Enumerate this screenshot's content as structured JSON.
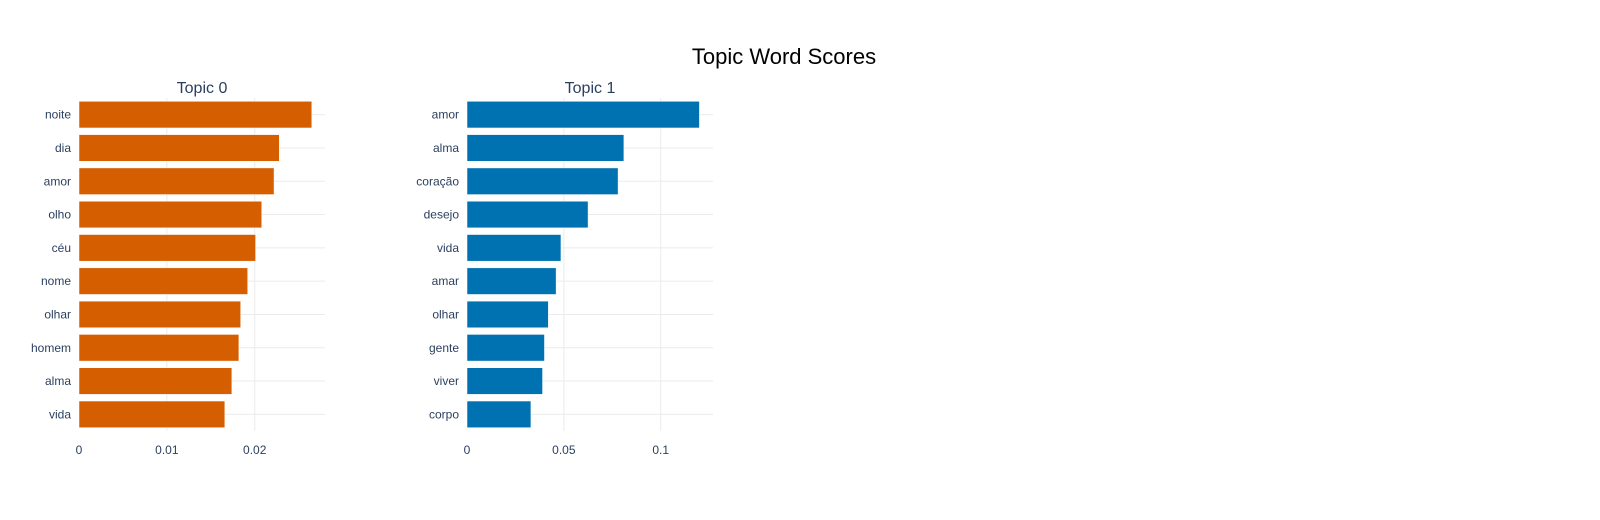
{
  "title": "Topic Word Scores",
  "chart_data": [
    {
      "type": "bar",
      "orientation": "horizontal",
      "title": "Topic 0",
      "color": "#D55E00",
      "categories": [
        "noite",
        "dia",
        "amor",
        "olho",
        "céu",
        "nome",
        "olhar",
        "homem",
        "alma",
        "vida"
      ],
      "values": [
        0.0265,
        0.0228,
        0.0222,
        0.0208,
        0.0201,
        0.0192,
        0.0184,
        0.0182,
        0.0174,
        0.0166
      ],
      "xlim": [
        0,
        0.028
      ],
      "xticks": [
        0,
        0.01,
        0.02
      ],
      "xtick_labels": [
        "0",
        "0.01",
        "0.02"
      ]
    },
    {
      "type": "bar",
      "orientation": "horizontal",
      "title": "Topic 1",
      "color": "#0072B2",
      "categories": [
        "amor",
        "alma",
        "coração",
        "desejo",
        "vida",
        "amar",
        "olhar",
        "gente",
        "viver",
        "corpo"
      ],
      "values": [
        0.12,
        0.081,
        0.078,
        0.0625,
        0.0485,
        0.046,
        0.042,
        0.04,
        0.039,
        0.033
      ],
      "xlim": [
        0,
        0.127
      ],
      "xticks": [
        0,
        0.05,
        0.1
      ],
      "xtick_labels": [
        "0",
        "0.05",
        "0.1"
      ]
    }
  ]
}
